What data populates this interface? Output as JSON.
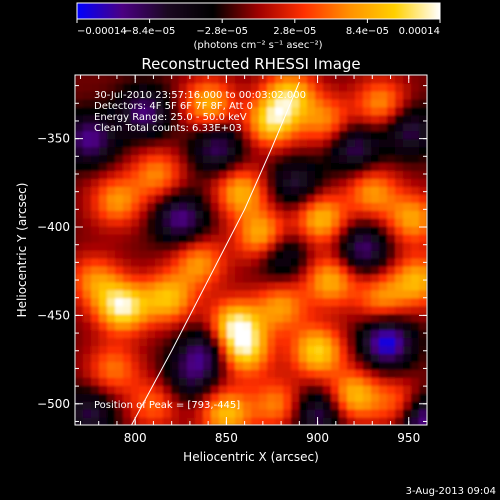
{
  "chart_data": {
    "type": "heatmap",
    "title": "Reconstructed RHESSI Image",
    "xlabel": "Heliocentric X (arcsec)",
    "ylabel": "Heliocentric Y (arcsec)",
    "xlim": [
      767,
      960
    ],
    "ylim": [
      -512,
      -314
    ],
    "x_ticks": [
      800,
      850,
      900,
      950
    ],
    "x_tick_labels": [
      "800",
      "850",
      "900",
      "950"
    ],
    "y_ticks": [
      -350,
      -400,
      -450,
      -500
    ],
    "y_tick_labels": [
      "−350",
      "−400",
      "−450",
      "−500"
    ],
    "colorbar": {
      "range": [
        -0.00014,
        0.00014
      ],
      "tick_labels": [
        "−0.00014",
        "−8.4e−05",
        "−2.8e−05",
        "2.8e−05",
        "8.4e−05",
        "0.00014"
      ],
      "unit_label": "(photons cm⁻² s⁻¹ asec⁻²)",
      "colors": [
        "#0000ff",
        "#4b0082",
        "#1a0820",
        "#000000",
        "#a00000",
        "#ff3000",
        "#ff9000",
        "#ffd000",
        "#ffffff"
      ]
    },
    "info_lines": [
      "30-Jul-2010 23:57:16.000 to 00:03:02.000",
      "Detectors: 4F 5F 6F 7F 8F, Att 0",
      "Energy Range: 25.0 - 50.0 keV",
      "Clean    Total counts: 6.33E+03"
    ],
    "peak_label": "Position of Peak = [793,-445]",
    "limb_curve": [
      [
        798,
        -512
      ],
      [
        820,
        -470
      ],
      [
        840,
        -430
      ],
      [
        860,
        -390
      ],
      [
        875,
        -355
      ],
      [
        890,
        -318
      ]
    ],
    "blobs": [
      {
        "x": 840,
        "y": -330,
        "v": 0.7
      },
      {
        "x": 875,
        "y": -340,
        "v": 0.85
      },
      {
        "x": 885,
        "y": -325,
        "v": 0.75
      },
      {
        "x": 905,
        "y": -340,
        "v": 0.55
      },
      {
        "x": 935,
        "y": -330,
        "v": 0.6
      },
      {
        "x": 790,
        "y": -385,
        "v": 0.6
      },
      {
        "x": 812,
        "y": -370,
        "v": 0.55
      },
      {
        "x": 858,
        "y": -380,
        "v": 0.7
      },
      {
        "x": 870,
        "y": -405,
        "v": 0.8
      },
      {
        "x": 902,
        "y": -395,
        "v": 0.75
      },
      {
        "x": 930,
        "y": -380,
        "v": 0.6
      },
      {
        "x": 952,
        "y": -395,
        "v": 0.65
      },
      {
        "x": 778,
        "y": -430,
        "v": 0.55
      },
      {
        "x": 793,
        "y": -445,
        "v": 1.0
      },
      {
        "x": 818,
        "y": -440,
        "v": 0.75
      },
      {
        "x": 835,
        "y": -420,
        "v": 0.6
      },
      {
        "x": 855,
        "y": -455,
        "v": 0.9
      },
      {
        "x": 860,
        "y": -470,
        "v": 0.8
      },
      {
        "x": 880,
        "y": -445,
        "v": 0.6
      },
      {
        "x": 907,
        "y": -430,
        "v": 0.7
      },
      {
        "x": 935,
        "y": -440,
        "v": 0.55
      },
      {
        "x": 955,
        "y": -430,
        "v": 0.7
      },
      {
        "x": 900,
        "y": -470,
        "v": 0.85
      },
      {
        "x": 920,
        "y": -495,
        "v": 0.75
      },
      {
        "x": 788,
        "y": -480,
        "v": 0.5
      },
      {
        "x": 810,
        "y": -500,
        "v": 0.45
      },
      {
        "x": 850,
        "y": -505,
        "v": 0.75
      },
      {
        "x": 878,
        "y": -500,
        "v": 0.55
      },
      {
        "x": 945,
        "y": -500,
        "v": 0.5
      },
      {
        "x": 825,
        "y": -395,
        "v": -0.7
      },
      {
        "x": 845,
        "y": -355,
        "v": -0.6
      },
      {
        "x": 805,
        "y": -335,
        "v": -0.65
      },
      {
        "x": 775,
        "y": -350,
        "v": -0.7
      },
      {
        "x": 920,
        "y": -355,
        "v": -0.6
      },
      {
        "x": 950,
        "y": -345,
        "v": -0.55
      },
      {
        "x": 888,
        "y": -375,
        "v": -0.5
      },
      {
        "x": 838,
        "y": -470,
        "v": -0.6
      },
      {
        "x": 880,
        "y": -415,
        "v": -0.55
      },
      {
        "x": 925,
        "y": -412,
        "v": -0.65
      },
      {
        "x": 938,
        "y": -465,
        "v": -0.9
      },
      {
        "x": 958,
        "y": -508,
        "v": -0.8
      },
      {
        "x": 900,
        "y": -505,
        "v": -0.6
      },
      {
        "x": 775,
        "y": -505,
        "v": -0.5
      },
      {
        "x": 830,
        "y": -485,
        "v": -0.45
      }
    ]
  },
  "timestamp": "3-Aug-2013 09:04"
}
